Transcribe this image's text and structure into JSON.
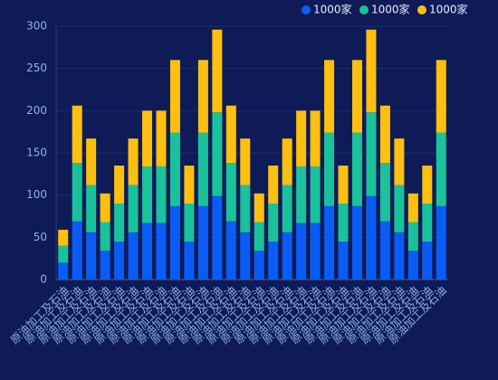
{
  "chart_data": {
    "type": "stacked_bar",
    "categories": [
      "原油加工及石油",
      "原油加工及石油",
      "原油加工及石油",
      "原油加工及石油",
      "原油加工及石油",
      "原油加工及石油",
      "原油加工及石油",
      "原油加工及石油",
      "原油加工及石油",
      "原油加工及石油",
      "原油加工及石油",
      "原油加工及石油",
      "原油加工及石油",
      "原油加工及石油",
      "原油加工及石油",
      "原油加工及石油",
      "原油加工及石油",
      "原油加工及石油",
      "原油加工及石油",
      "原油加工及石油",
      "原油加工及石油",
      "原油加工及石油",
      "原油加工及石油",
      "原油加工及石油",
      "原油加工及石油",
      "原油加工及石油",
      "原油加工及石油",
      "原油加工及石油"
    ],
    "series": [
      {
        "name": "1000家",
        "color": "#0a5cf5",
        "values": [
          20,
          69,
          56,
          34,
          45,
          56,
          67,
          67,
          87,
          45,
          87,
          99,
          69,
          56,
          34,
          45,
          56,
          67,
          67,
          87,
          45,
          87,
          99,
          69,
          56,
          34,
          45,
          87
        ]
      },
      {
        "name": "1000家",
        "color": "#19c29a",
        "values": [
          20,
          69,
          56,
          34,
          45,
          56,
          67,
          67,
          87,
          45,
          87,
          99,
          69,
          56,
          34,
          45,
          56,
          67,
          67,
          87,
          45,
          87,
          99,
          69,
          56,
          34,
          45,
          87
        ]
      },
      {
        "name": "1000家",
        "color": "#fdc010",
        "values": [
          19,
          68,
          55,
          34,
          45,
          55,
          66,
          66,
          86,
          45,
          86,
          98,
          68,
          55,
          34,
          45,
          55,
          66,
          66,
          86,
          45,
          86,
          98,
          68,
          55,
          34,
          45,
          86
        ]
      }
    ],
    "ylim": [
      0,
      300
    ],
    "yticks": [
      0,
      50,
      100,
      150,
      200,
      250,
      300
    ],
    "grid": true,
    "legend": "top-right"
  }
}
